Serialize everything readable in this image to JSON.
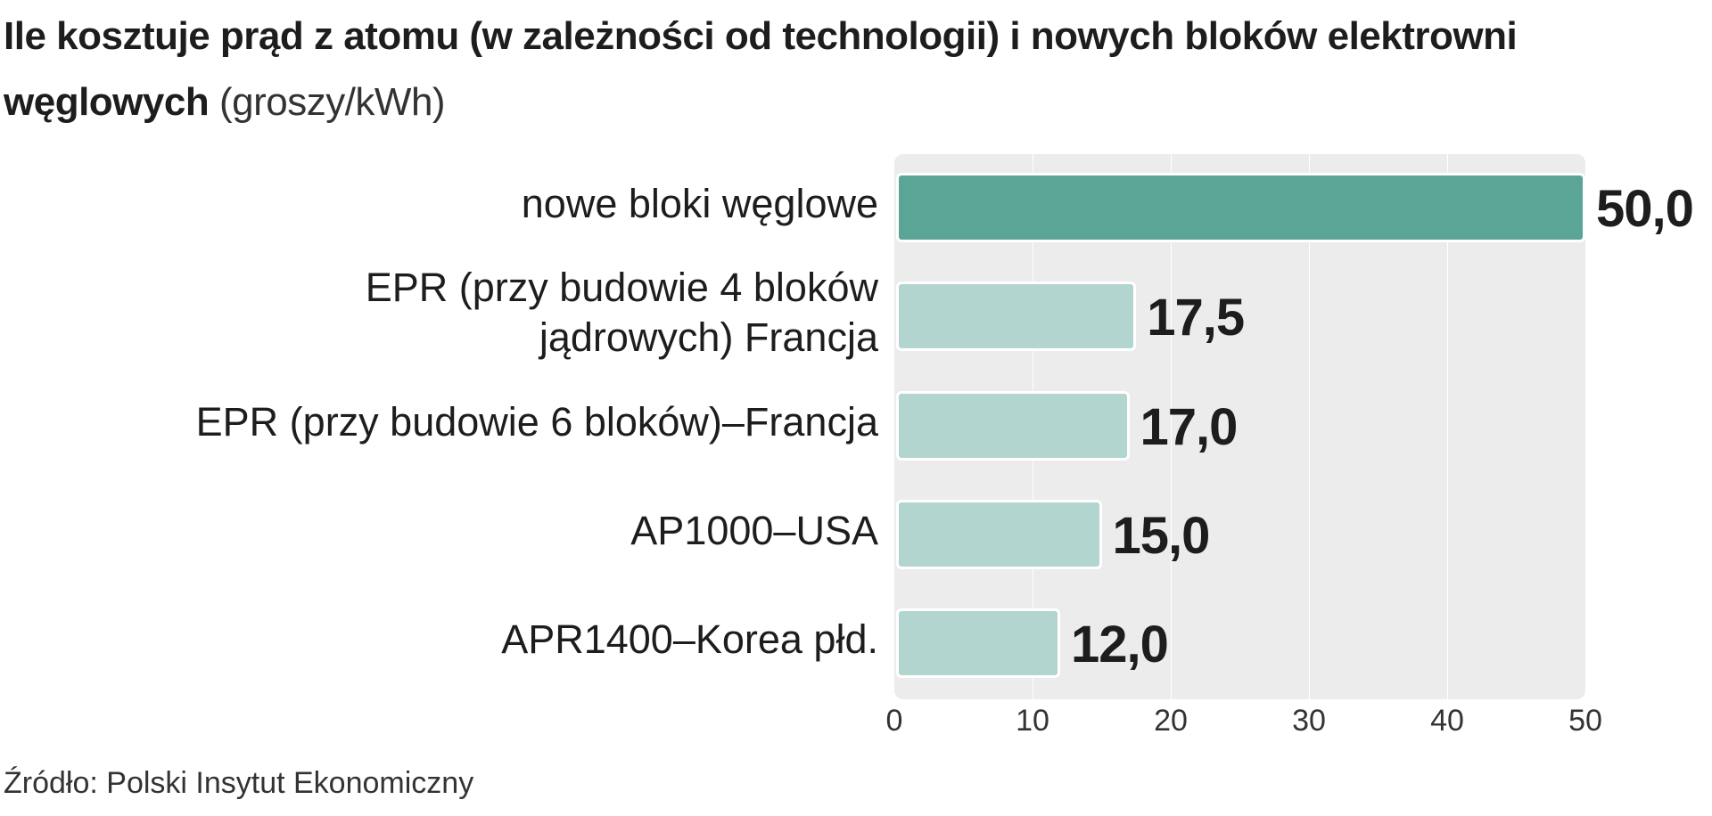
{
  "title_main": "Ile kosztuje prąd z atomu (w zależności od technologii) i nowych bloków elektrowni węglowych",
  "title_unit": "(groszy/kWh)",
  "source": "Źródło: Polski Insytut Ekonomiczny",
  "colors": {
    "highlight": "#5aa596",
    "bar": "#b3d5cf",
    "plot_bg": "#ececec",
    "grid": "#ffffff"
  },
  "chart_data": {
    "type": "bar",
    "orientation": "horizontal",
    "title": "Ile kosztuje prąd z atomu (w zależności od technologii) i nowych bloków elektrowni węglowych",
    "unit": "(groszy/kWh)",
    "categories": [
      "nowe bloki węglowe",
      "EPR (przy budowie 4 bloków\njądrowych) Francja",
      "EPR (przy budowie 6 bloków)–Francja",
      "AP1000–USA",
      "APR1400–Korea płd."
    ],
    "values": [
      50.0,
      17.5,
      17.0,
      15.0,
      12.0
    ],
    "value_labels": [
      "50,0",
      "17,5",
      "17,0",
      "15,0",
      "12,0"
    ],
    "xlim": [
      0,
      50
    ],
    "xticks": [
      "0",
      "10",
      "20",
      "30",
      "40",
      "50"
    ],
    "grid": true,
    "highlight_index": 0
  }
}
